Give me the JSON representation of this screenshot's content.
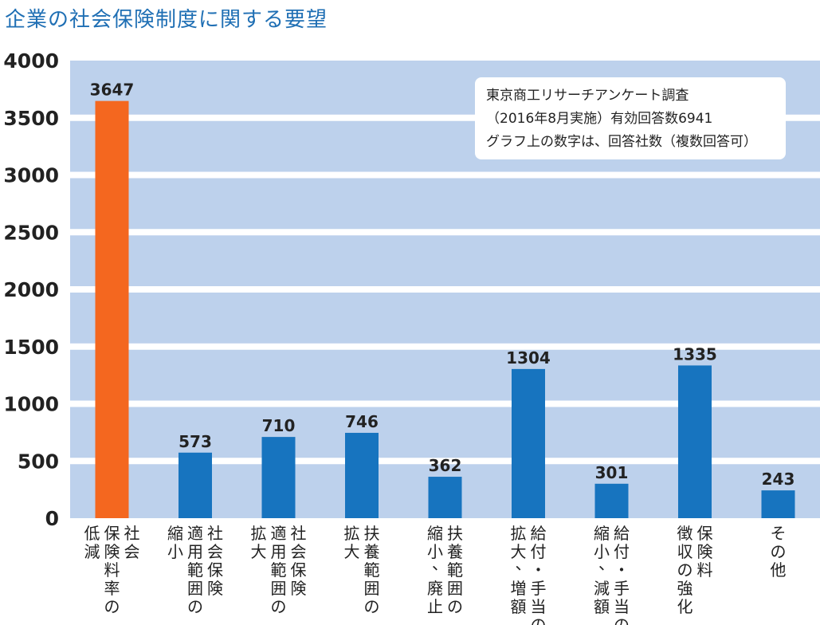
{
  "title": "企業の社会保険制度に関する要望",
  "note": [
    "東京商工リサーチアンケート調査",
    "（2016年8月実施）有効回答数6941",
    "グラフ上の数字は、回答社数（複数回答可）"
  ],
  "colors": {
    "background": "#bdd1ec",
    "bar": "#1774bf",
    "highlight": "#f4671f",
    "title": "#1f6fb4"
  },
  "chart_data": {
    "type": "bar",
    "categories": [
      [
        "社会",
        "保険料率の",
        "低減"
      ],
      [
        "社会保険",
        "適用範囲の",
        "縮小"
      ],
      [
        "社会保険",
        "適用範囲の",
        "拡大"
      ],
      [
        "扶養範囲の",
        "拡大"
      ],
      [
        "扶養範囲の",
        "縮小、廃止"
      ],
      [
        "給付・手当の",
        "拡大、増額"
      ],
      [
        "給付・手当の",
        "縮小、減額"
      ],
      [
        "保険料",
        "徴収の強化"
      ],
      [
        "その他"
      ]
    ],
    "values": [
      3647,
      573,
      710,
      746,
      362,
      1304,
      301,
      1335,
      243
    ],
    "highlight_index": 0,
    "yticks": [
      0,
      500,
      1000,
      1500,
      2000,
      2500,
      3000,
      3500,
      4000
    ],
    "ylim": [
      0,
      4000
    ],
    "grid": "horizontal bands",
    "legend": "none"
  }
}
